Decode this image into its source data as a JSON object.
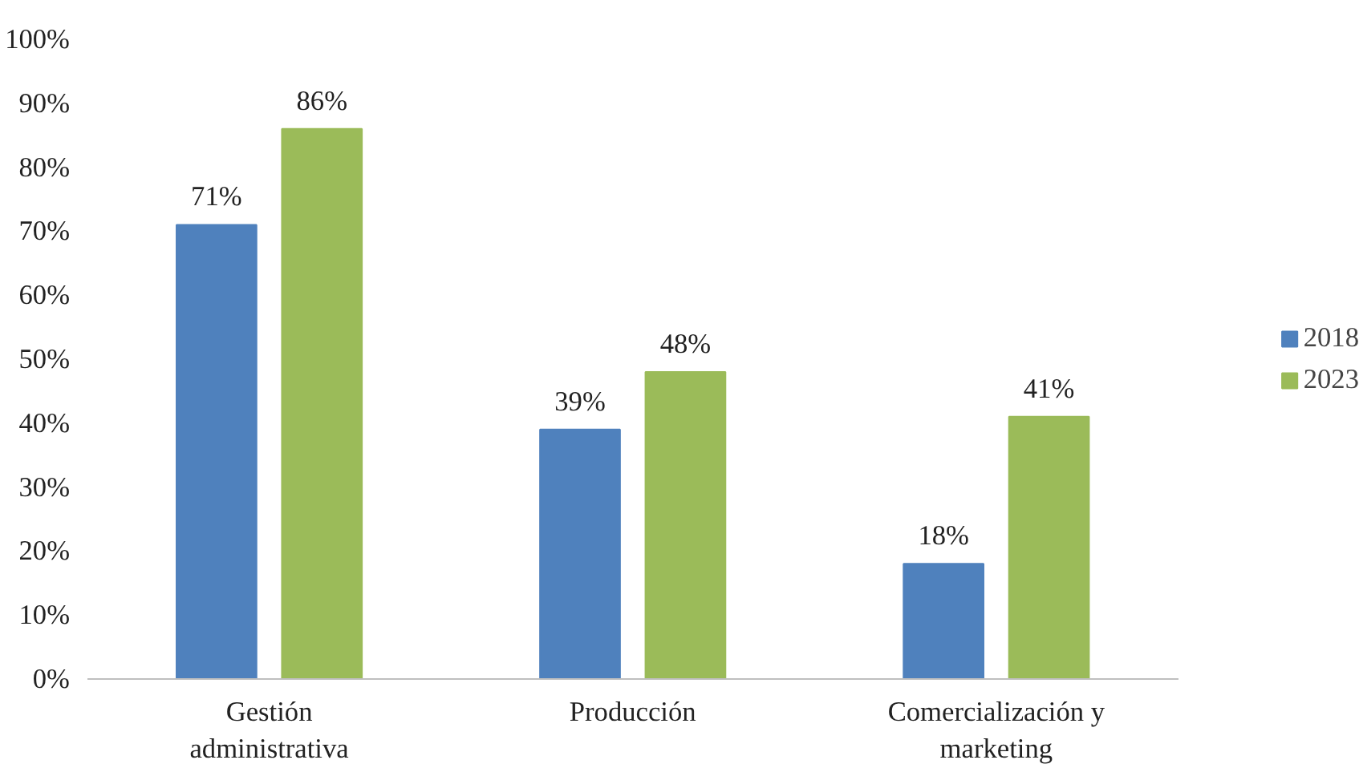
{
  "chart_data": {
    "type": "bar",
    "categories": [
      "Gestión administrativa",
      "Producción",
      "Comercialización y marketing"
    ],
    "series": [
      {
        "name": "2018",
        "color": "#4f81bd",
        "values": [
          71,
          39,
          18
        ],
        "value_labels": [
          "71%",
          "39%",
          "18%"
        ]
      },
      {
        "name": "2023",
        "color": "#9bbb59",
        "values": [
          86,
          48,
          41
        ],
        "value_labels": [
          "86%",
          "48%",
          "41%"
        ]
      }
    ],
    "ylim": [
      0,
      100
    ],
    "yticks": [
      {
        "value": 0,
        "label": "0%"
      },
      {
        "value": 10,
        "label": "10%"
      },
      {
        "value": 20,
        "label": "20%"
      },
      {
        "value": 30,
        "label": "30%"
      },
      {
        "value": 40,
        "label": "40%"
      },
      {
        "value": 50,
        "label": "50%"
      },
      {
        "value": 60,
        "label": "60%"
      },
      {
        "value": 70,
        "label": "70%"
      },
      {
        "value": 80,
        "label": "80%"
      },
      {
        "value": 90,
        "label": "90%"
      },
      {
        "value": 100,
        "label": "100%"
      }
    ],
    "grid": false,
    "legend": "right"
  }
}
